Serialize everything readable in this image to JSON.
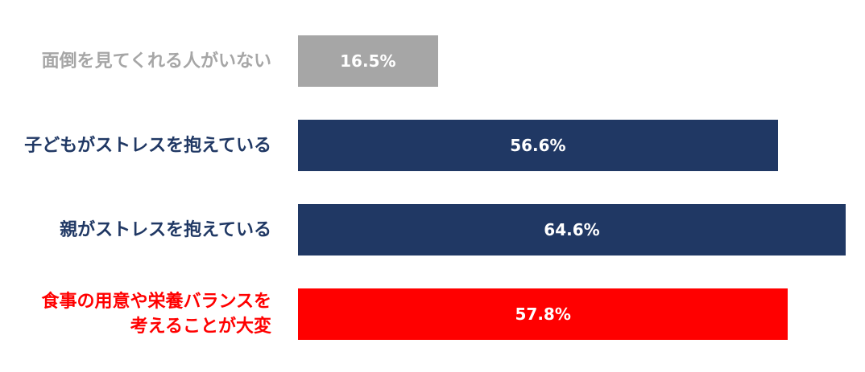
{
  "chart_data": {
    "type": "bar",
    "orientation": "horizontal",
    "categories": [
      "面倒を見てくれる人がいない",
      "子どもがストレスを抱えている",
      "親がストレスを抱えている",
      "食事の用意や栄養バランスを\n考えることが大変"
    ],
    "values": [
      16.5,
      56.6,
      64.6,
      57.8
    ],
    "value_labels": [
      "16.5%",
      "56.6%",
      "64.6%",
      "57.8%"
    ],
    "colors": [
      "#a6a6a6",
      "#203864",
      "#203864",
      "#ff0000"
    ]
  }
}
